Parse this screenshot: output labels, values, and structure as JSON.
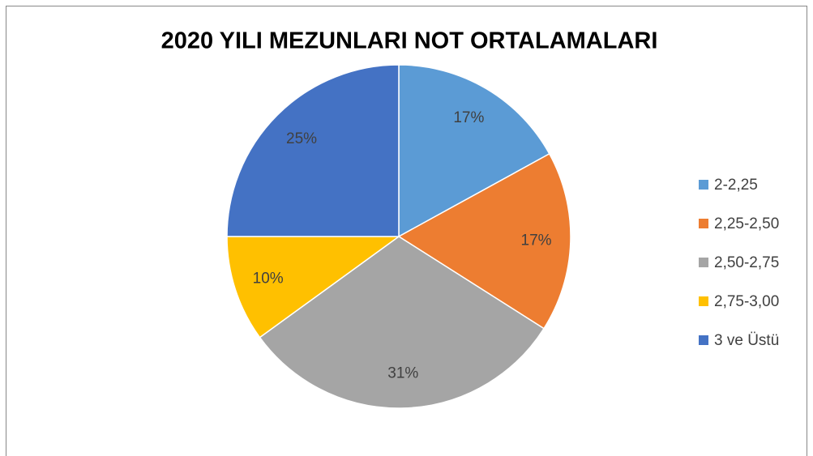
{
  "chart_data": {
    "type": "pie",
    "title": "2020 YILI MEZUNLARI NOT ORTALAMALARI",
    "categories": [
      "2-2,25",
      "2,25-2,50",
      "2,50-2,75",
      "2,75-3,00",
      "3 ve Üstü"
    ],
    "values": [
      17,
      17,
      31,
      10,
      25
    ],
    "value_labels": [
      "17%",
      "17%",
      "31%",
      "10%",
      "25%"
    ],
    "colors": [
      "#5b9bd5",
      "#ed7d31",
      "#a5a5a5",
      "#ffc000",
      "#4472c4"
    ],
    "legend": "right"
  }
}
